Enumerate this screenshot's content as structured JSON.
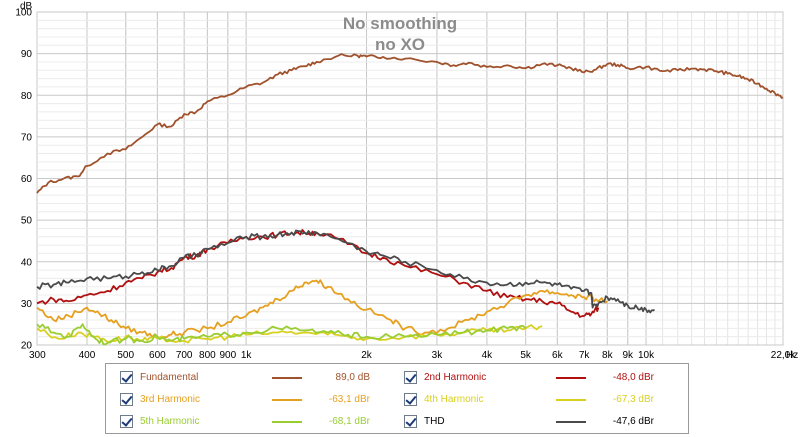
{
  "chart_data": {
    "type": "line",
    "title": "No smoothing",
    "subtitle": "no XO",
    "ylabel": "dB",
    "xunit": "Hz",
    "xscale": "log",
    "xlim": [
      300,
      22000
    ],
    "ylim": [
      20,
      100
    ],
    "grid": true,
    "x_ticks": [
      {
        "value": 300,
        "label": "300"
      },
      {
        "value": 400,
        "label": "400"
      },
      {
        "value": 500,
        "label": "500"
      },
      {
        "value": 600,
        "label": "600"
      },
      {
        "value": 700,
        "label": "700"
      },
      {
        "value": 800,
        "label": "800"
      },
      {
        "value": 900,
        "label": "900"
      },
      {
        "value": 1000,
        "label": "1k"
      },
      {
        "value": 2000,
        "label": "2k"
      },
      {
        "value": 3000,
        "label": "3k"
      },
      {
        "value": 4000,
        "label": "4k"
      },
      {
        "value": 5000,
        "label": "5k"
      },
      {
        "value": 6000,
        "label": "6k"
      },
      {
        "value": 7000,
        "label": "7k"
      },
      {
        "value": 8000,
        "label": "8k"
      },
      {
        "value": 9000,
        "label": "9k"
      },
      {
        "value": 10000,
        "label": "10k"
      },
      {
        "value": 22000,
        "label": "22,0k"
      }
    ],
    "y_ticks": [
      20,
      30,
      40,
      50,
      60,
      70,
      80,
      90,
      100
    ],
    "series": [
      {
        "name": "Fundamental",
        "value_label": "89,0 dB",
        "color": "#a0522d",
        "points": [
          [
            300,
            56.5
          ],
          [
            320,
            59
          ],
          [
            350,
            60
          ],
          [
            380,
            60.5
          ],
          [
            400,
            63
          ],
          [
            450,
            66
          ],
          [
            500,
            67
          ],
          [
            550,
            70
          ],
          [
            600,
            73
          ],
          [
            650,
            72.5
          ],
          [
            700,
            75.5
          ],
          [
            750,
            76
          ],
          [
            800,
            78.5
          ],
          [
            900,
            80
          ],
          [
            1000,
            82
          ],
          [
            1100,
            83
          ],
          [
            1200,
            85
          ],
          [
            1300,
            86
          ],
          [
            1400,
            87
          ],
          [
            1500,
            88
          ],
          [
            1700,
            89.5
          ],
          [
            1900,
            89.5
          ],
          [
            2000,
            89.3
          ],
          [
            2200,
            89.2
          ],
          [
            2500,
            88.8
          ],
          [
            3000,
            88
          ],
          [
            3300,
            87.2
          ],
          [
            3600,
            87.8
          ],
          [
            4000,
            86.8
          ],
          [
            4500,
            87.2
          ],
          [
            5000,
            86.5
          ],
          [
            5500,
            87.5
          ],
          [
            6000,
            87.2
          ],
          [
            6500,
            86.5
          ],
          [
            7000,
            85.5
          ],
          [
            7500,
            86.2
          ],
          [
            8000,
            87.5
          ],
          [
            8500,
            87.3
          ],
          [
            9000,
            86.5
          ],
          [
            10000,
            86.8
          ],
          [
            11000,
            85.8
          ],
          [
            12000,
            86
          ],
          [
            13000,
            86.4
          ],
          [
            14000,
            86.2
          ],
          [
            15000,
            85.8
          ],
          [
            16000,
            85.2
          ],
          [
            17000,
            84.6
          ],
          [
            18000,
            83.8
          ],
          [
            19000,
            82.8
          ],
          [
            20000,
            81.6
          ],
          [
            21000,
            80.5
          ],
          [
            22000,
            79.5
          ]
        ]
      },
      {
        "name": "2nd Harmonic",
        "value_label": "-48,0 dBr",
        "color": "#b01010",
        "points": [
          [
            300,
            30
          ],
          [
            330,
            31
          ],
          [
            360,
            30.5
          ],
          [
            400,
            32
          ],
          [
            450,
            33
          ],
          [
            500,
            35
          ],
          [
            550,
            36
          ],
          [
            600,
            37.5
          ],
          [
            650,
            38.5
          ],
          [
            700,
            41
          ],
          [
            750,
            41.5
          ],
          [
            800,
            43
          ],
          [
            900,
            44.5
          ],
          [
            1000,
            46
          ],
          [
            1100,
            46
          ],
          [
            1200,
            46.5
          ],
          [
            1300,
            47
          ],
          [
            1400,
            47
          ],
          [
            1500,
            47
          ],
          [
            1700,
            45.5
          ],
          [
            2000,
            42
          ],
          [
            2200,
            41
          ],
          [
            2500,
            39
          ],
          [
            3000,
            37
          ],
          [
            3500,
            35
          ],
          [
            4000,
            33
          ],
          [
            4500,
            31.5
          ],
          [
            5000,
            31
          ],
          [
            5500,
            30.5
          ],
          [
            6000,
            30
          ],
          [
            6500,
            28
          ],
          [
            7000,
            27
          ],
          [
            7300,
            27.5
          ],
          [
            7600,
            29
          ]
        ]
      },
      {
        "name": "3rd Harmonic",
        "value_label": "-63,1 dBr",
        "color": "#e6a020",
        "points": [
          [
            300,
            29
          ],
          [
            330,
            26
          ],
          [
            360,
            27
          ],
          [
            400,
            29
          ],
          [
            430,
            27.5
          ],
          [
            460,
            26
          ],
          [
            500,
            24
          ],
          [
            550,
            23
          ],
          [
            600,
            22
          ],
          [
            650,
            22.5
          ],
          [
            700,
            23
          ],
          [
            800,
            24
          ],
          [
            900,
            25.5
          ],
          [
            1000,
            27
          ],
          [
            1100,
            29
          ],
          [
            1200,
            31
          ],
          [
            1300,
            33
          ],
          [
            1400,
            35
          ],
          [
            1500,
            35.5
          ],
          [
            1600,
            34
          ],
          [
            1800,
            31
          ],
          [
            2000,
            28.5
          ],
          [
            2300,
            26
          ],
          [
            2500,
            24
          ],
          [
            2800,
            23
          ],
          [
            3200,
            24
          ],
          [
            3600,
            26
          ],
          [
            4000,
            28
          ],
          [
            4500,
            30
          ],
          [
            5000,
            32
          ],
          [
            5500,
            33
          ],
          [
            6000,
            32.5
          ],
          [
            6500,
            32
          ],
          [
            7000,
            31.5
          ],
          [
            7500,
            31
          ],
          [
            8000,
            30.5
          ]
        ]
      },
      {
        "name": "4th Harmonic",
        "value_label": "-67,3 dBr",
        "color": "#d8d020",
        "points": [
          [
            300,
            24
          ],
          [
            340,
            21.5
          ],
          [
            380,
            23
          ],
          [
            420,
            22
          ],
          [
            460,
            21
          ],
          [
            500,
            22
          ],
          [
            550,
            21
          ],
          [
            600,
            21.5
          ],
          [
            700,
            21
          ],
          [
            800,
            21.5
          ],
          [
            900,
            22
          ],
          [
            1000,
            22.5
          ],
          [
            1200,
            23
          ],
          [
            1400,
            23
          ],
          [
            1600,
            22.5
          ],
          [
            1800,
            22
          ],
          [
            2000,
            21.5
          ],
          [
            2500,
            22
          ],
          [
            3000,
            22.5
          ],
          [
            3500,
            23
          ],
          [
            4000,
            23.5
          ],
          [
            4500,
            23.5
          ],
          [
            5000,
            24
          ],
          [
            5500,
            24.5
          ]
        ]
      },
      {
        "name": "5th Harmonic",
        "value_label": "-68,1 dBr",
        "color": "#9acd32",
        "points": [
          [
            300,
            25
          ],
          [
            330,
            23
          ],
          [
            360,
            22
          ],
          [
            390,
            25
          ],
          [
            420,
            21.5
          ],
          [
            450,
            20.5
          ],
          [
            500,
            21.5
          ],
          [
            550,
            21
          ],
          [
            600,
            22
          ],
          [
            650,
            21
          ],
          [
            700,
            21.5
          ],
          [
            800,
            22
          ],
          [
            900,
            22.5
          ],
          [
            1000,
            23
          ],
          [
            1200,
            24
          ],
          [
            1400,
            23.5
          ],
          [
            1600,
            23
          ],
          [
            1800,
            22.5
          ],
          [
            2000,
            22
          ],
          [
            2500,
            22
          ],
          [
            3000,
            22.5
          ],
          [
            3500,
            23
          ],
          [
            4000,
            23.5
          ],
          [
            4500,
            24
          ],
          [
            5000,
            24
          ]
        ]
      },
      {
        "name": "THD",
        "value_label": "-47,6 dBr",
        "color": "#4a4a4a",
        "points": [
          [
            300,
            34
          ],
          [
            330,
            34.5
          ],
          [
            360,
            35
          ],
          [
            400,
            36
          ],
          [
            450,
            36
          ],
          [
            500,
            36.5
          ],
          [
            550,
            37.5
          ],
          [
            600,
            38
          ],
          [
            650,
            39
          ],
          [
            700,
            41
          ],
          [
            750,
            41.5
          ],
          [
            800,
            43
          ],
          [
            900,
            44.5
          ],
          [
            1000,
            46
          ],
          [
            1100,
            46
          ],
          [
            1200,
            46.5
          ],
          [
            1300,
            47
          ],
          [
            1400,
            47
          ],
          [
            1500,
            47
          ],
          [
            1700,
            45.5
          ],
          [
            2000,
            42.5
          ],
          [
            2200,
            41.5
          ],
          [
            2500,
            40
          ],
          [
            3000,
            38
          ],
          [
            3500,
            36
          ],
          [
            4000,
            35
          ],
          [
            4500,
            34.5
          ],
          [
            5000,
            35
          ],
          [
            5500,
            35
          ],
          [
            6000,
            34.5
          ],
          [
            6500,
            33.5
          ],
          [
            7000,
            33
          ],
          [
            7300,
            32.5
          ],
          [
            7350,
            29
          ],
          [
            7600,
            30
          ],
          [
            8000,
            31.5
          ],
          [
            8500,
            31
          ],
          [
            9000,
            29.5
          ],
          [
            9500,
            29
          ],
          [
            10000,
            28.5
          ],
          [
            10500,
            28.5
          ]
        ]
      }
    ]
  }
}
